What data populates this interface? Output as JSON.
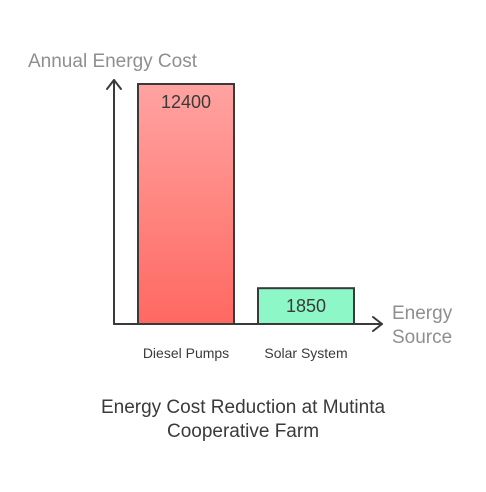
{
  "chart_data": {
    "type": "bar",
    "title": "Energy Cost Reduction at Mutinta Cooperative Farm",
    "title_lines": [
      "Energy Cost Reduction at Mutinta",
      "Cooperative Farm"
    ],
    "ylabel": "Annual Energy Cost",
    "xlabel": "Energy Source",
    "xlabel_lines": [
      "Energy",
      "Source"
    ],
    "categories": [
      "Diesel Pumps",
      "Solar System"
    ],
    "values": [
      12400,
      1850
    ],
    "ylim": [
      0,
      12400
    ],
    "grid": false,
    "legend": "none",
    "colors": {
      "Diesel Pumps": {
        "top": "#ffa3a1",
        "bottom": "#ff6861"
      },
      "Solar System": {
        "top": "#8ef7c7",
        "bottom": "#8ef7c7"
      },
      "bar_stroke": "#3a3a3a",
      "axis": "#3a3a3a"
    }
  }
}
